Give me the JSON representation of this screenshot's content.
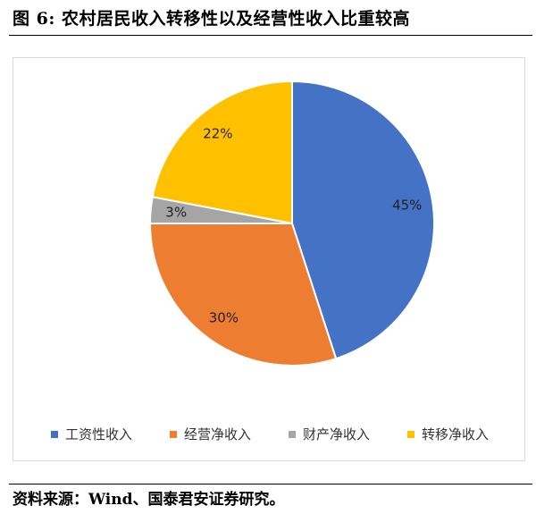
{
  "figure": {
    "title": "图 6:  农村居民收入转移性以及经营性收入比重较高",
    "source": "资料来源：Wind、国泰君安证券研究。"
  },
  "chart_data": {
    "type": "pie",
    "categories": [
      "工资性收入",
      "经营净收入",
      "财产净收入",
      "转移净收入"
    ],
    "values": [
      45,
      30,
      3,
      22
    ],
    "labels": [
      "45%",
      "30%",
      "3%",
      "22%"
    ],
    "colors": [
      "#4472C4",
      "#ED7D31",
      "#A5A5A5",
      "#FFC000"
    ],
    "start": "12 o'clock",
    "direction": "clockwise",
    "legend_position": "bottom"
  }
}
